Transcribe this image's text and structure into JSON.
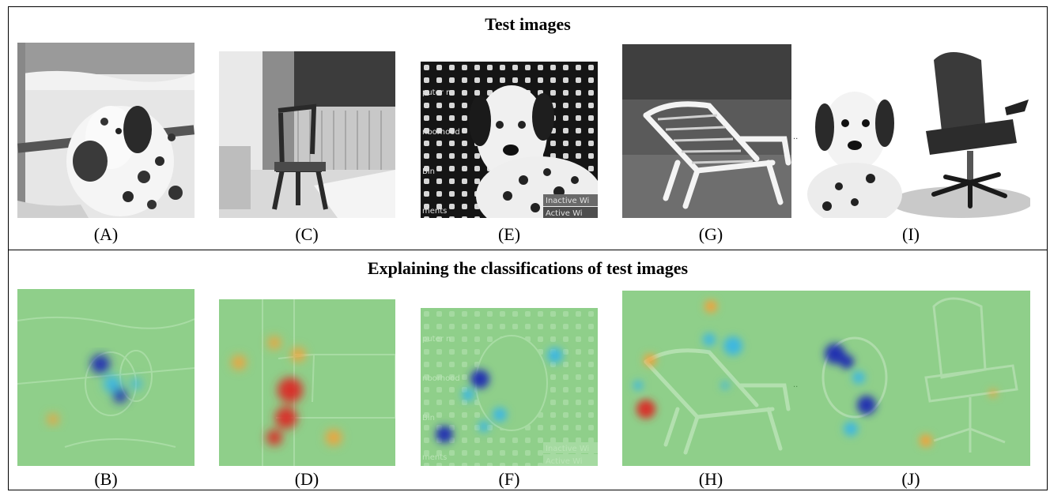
{
  "top_section": {
    "title": "Test images",
    "panels": [
      {
        "caption": "(A)",
        "subject": "dalmatian dog in snow (grayscale photo)"
      },
      {
        "caption": "(C)",
        "subject": "wooden chair in a corner (grayscale photo)"
      },
      {
        "caption": "(E)",
        "subject": "dalmatian dog with overlaid screen text",
        "overlay_text": [
          "puter n",
          "nborhood",
          "Bin",
          "ments",
          "Inactive Wi",
          "Active Wi"
        ]
      },
      {
        "caption": "(G)",
        "subject": "white plastic lawn chair on grass (grayscale photo)"
      },
      {
        "caption": "(I)",
        "subject": "dalmatian dog next to an office chair"
      }
    ]
  },
  "bottom_section": {
    "title": "Explaining the classifications of test images",
    "panels": [
      {
        "caption": "(B)"
      },
      {
        "caption": "(D)"
      },
      {
        "caption": "(F)",
        "overlay_text": [
          "puter n",
          "nborhood",
          "Bin",
          "ments",
          "Inactive Wi",
          "Active Wi"
        ]
      },
      {
        "caption": "(H)"
      },
      {
        "caption": "(J)"
      }
    ]
  },
  "colors": {
    "heatmap_base": "#8fcf8a",
    "heat_red": "#d7302a",
    "heat_orange": "#f2a23a",
    "heat_blue": "#2233b0",
    "heat_cyan": "#3db7e0"
  }
}
